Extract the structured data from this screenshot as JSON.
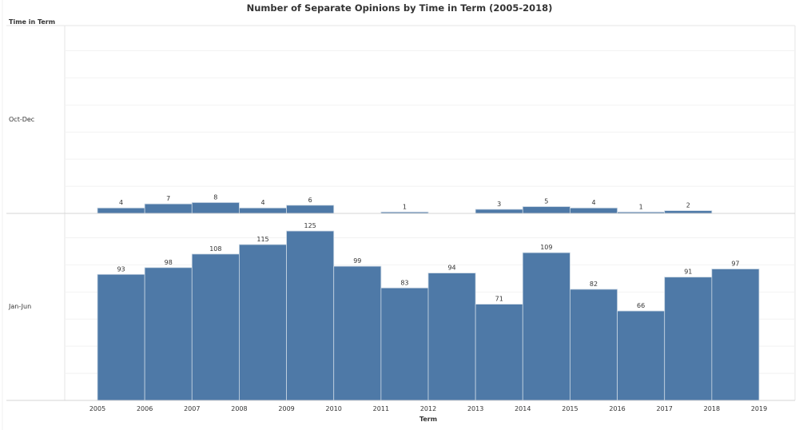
{
  "chart_data": {
    "type": "bar",
    "title": "Number of Separate Opinions by Time in Term (2005-2018)",
    "row_header": "Time in Term",
    "xlabel": "Term",
    "x_ticks": [
      "2005",
      "2006",
      "2007",
      "2008",
      "2009",
      "2010",
      "2011",
      "2012",
      "2013",
      "2014",
      "2015",
      "2016",
      "2017",
      "2018",
      "2019"
    ],
    "categories": [
      "2005",
      "2006",
      "2007",
      "2008",
      "2009",
      "2010",
      "2011",
      "2012",
      "2013",
      "2014",
      "2015",
      "2016",
      "2017",
      "2018"
    ],
    "ylim": [
      0,
      138
    ],
    "grid": true,
    "bar_color": "#4e79a7",
    "series": [
      {
        "name": "Oct-Dec",
        "values": [
          4,
          7,
          8,
          4,
          6,
          null,
          1,
          null,
          3,
          5,
          4,
          1,
          2,
          null
        ]
      },
      {
        "name": "Jan-Jun",
        "values": [
          93,
          98,
          108,
          115,
          125,
          99,
          83,
          94,
          71,
          109,
          82,
          66,
          91,
          97
        ]
      }
    ]
  }
}
